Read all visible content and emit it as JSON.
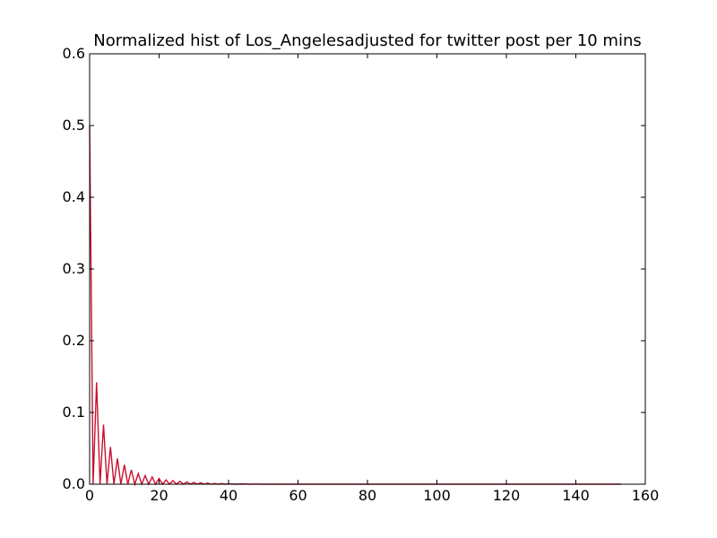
{
  "chart_data": {
    "type": "line",
    "title": "Normalized hist of Los_Angelesadjusted for twitter post per 10 mins",
    "xlabel": "",
    "ylabel": "",
    "xlim": [
      0,
      160
    ],
    "ylim": [
      0,
      0.6
    ],
    "xticks": [
      0,
      20,
      40,
      60,
      80,
      100,
      120,
      140,
      160
    ],
    "yticks": [
      0.0,
      0.1,
      0.2,
      0.3,
      0.4,
      0.5,
      0.6
    ],
    "xtick_labels": [
      "0",
      "20",
      "40",
      "60",
      "80",
      "100",
      "120",
      "140",
      "160"
    ],
    "ytick_labels": [
      "0.0",
      "0.1",
      "0.2",
      "0.3",
      "0.4",
      "0.5",
      "0.6"
    ],
    "grid": false,
    "series": [
      {
        "color": "#c8102e",
        "x": [
          0,
          1,
          2,
          3,
          4,
          5,
          6,
          7,
          8,
          9,
          10,
          11,
          12,
          13,
          14,
          15,
          16,
          17,
          18,
          19,
          20,
          21,
          22,
          23,
          24,
          25,
          26,
          27,
          28,
          29,
          30,
          31,
          32,
          33,
          34,
          35,
          36,
          37,
          38,
          39,
          40,
          42,
          44,
          46,
          48,
          50,
          55,
          60,
          70,
          80,
          90,
          100,
          110,
          120,
          130,
          140,
          153
        ],
        "y": [
          0.5,
          0,
          0.142,
          0,
          0.083,
          0,
          0.052,
          0,
          0.036,
          0,
          0.027,
          0,
          0.02,
          0,
          0.015,
          0,
          0.012,
          0,
          0.01,
          0,
          0.008,
          0,
          0.006,
          0,
          0.005,
          0,
          0.004,
          0,
          0.003,
          0,
          0.0025,
          0,
          0.002,
          0,
          0.0015,
          0,
          0.001,
          0,
          0.0008,
          0,
          0.0005,
          0,
          0.0003,
          0,
          0.0002,
          0,
          0,
          0,
          0,
          0,
          0,
          0,
          0,
          0,
          0,
          0,
          0
        ]
      }
    ]
  }
}
